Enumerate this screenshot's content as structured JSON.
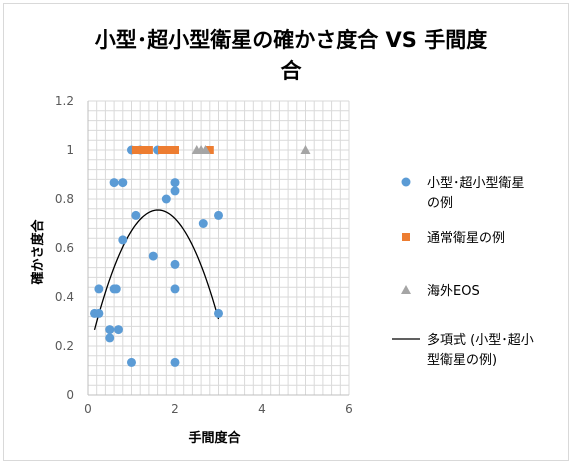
{
  "chart_data": {
    "type": "scatter",
    "title_lines": [
      "小型･超小型衛星の確かさ度合 VS 手間度",
      "合"
    ],
    "xlabel": "手間度合",
    "ylabel": "確かさ度合",
    "xlim": [
      0,
      6
    ],
    "ylim": [
      0,
      1.2
    ],
    "x_ticks": [
      "0",
      "2",
      "4",
      "6"
    ],
    "y_ticks": [
      "0",
      "0.2",
      "0.4",
      "0.6",
      "0.8",
      "1",
      "1.2"
    ],
    "grid": true,
    "legend_position": "right",
    "series": [
      {
        "name_lines": [
          "小型･超小型衛星",
          "の例"
        ],
        "marker": "circle",
        "color": "#5b9bd5",
        "points": [
          {
            "x": 0.15,
            "y": 0.333
          },
          {
            "x": 0.25,
            "y": 0.333
          },
          {
            "x": 0.25,
            "y": 0.433
          },
          {
            "x": 0.5,
            "y": 0.233
          },
          {
            "x": 0.5,
            "y": 0.267
          },
          {
            "x": 0.6,
            "y": 0.433
          },
          {
            "x": 0.65,
            "y": 0.433
          },
          {
            "x": 0.7,
            "y": 0.267
          },
          {
            "x": 0.6,
            "y": 0.867
          },
          {
            "x": 0.8,
            "y": 0.867
          },
          {
            "x": 0.8,
            "y": 0.633
          },
          {
            "x": 1.0,
            "y": 0.133
          },
          {
            "x": 1.0,
            "y": 1.0
          },
          {
            "x": 1.1,
            "y": 0.733
          },
          {
            "x": 1.2,
            "y": 1.0
          },
          {
            "x": 1.5,
            "y": 0.567
          },
          {
            "x": 1.6,
            "y": 1.0
          },
          {
            "x": 1.8,
            "y": 0.8
          },
          {
            "x": 2.0,
            "y": 0.867
          },
          {
            "x": 2.0,
            "y": 0.833
          },
          {
            "x": 2.0,
            "y": 0.533
          },
          {
            "x": 2.0,
            "y": 0.433
          },
          {
            "x": 2.0,
            "y": 0.133
          },
          {
            "x": 2.65,
            "y": 0.7
          },
          {
            "x": 3.0,
            "y": 0.733
          },
          {
            "x": 3.0,
            "y": 0.333
          }
        ]
      },
      {
        "name_lines": [
          "通常衛星の例"
        ],
        "marker": "square",
        "color": "#ed7d31",
        "points": [
          {
            "x": 1.1,
            "y": 1.0
          },
          {
            "x": 1.2,
            "y": 1.0
          },
          {
            "x": 1.3,
            "y": 1.0
          },
          {
            "x": 1.4,
            "y": 1.0
          },
          {
            "x": 1.7,
            "y": 1.0
          },
          {
            "x": 1.8,
            "y": 1.0
          },
          {
            "x": 1.9,
            "y": 1.0
          },
          {
            "x": 2.0,
            "y": 1.0
          },
          {
            "x": 2.8,
            "y": 1.0
          }
        ]
      },
      {
        "name_lines": [
          "海外EOS"
        ],
        "marker": "triangle",
        "color": "#a5a5a5",
        "points": [
          {
            "x": 2.5,
            "y": 1.0
          },
          {
            "x": 2.6,
            "y": 1.0
          },
          {
            "x": 2.7,
            "y": 1.0
          },
          {
            "x": 5.0,
            "y": 1.0
          }
        ]
      },
      {
        "name_lines": [
          "多項式 (小型･超小",
          "型衛星の例)"
        ],
        "marker": "line",
        "color": "#000000",
        "trend_x_range": [
          0.15,
          3.0
        ],
        "poly_coeffs": [
          0.16,
          0.74,
          -0.23
        ]
      }
    ]
  }
}
